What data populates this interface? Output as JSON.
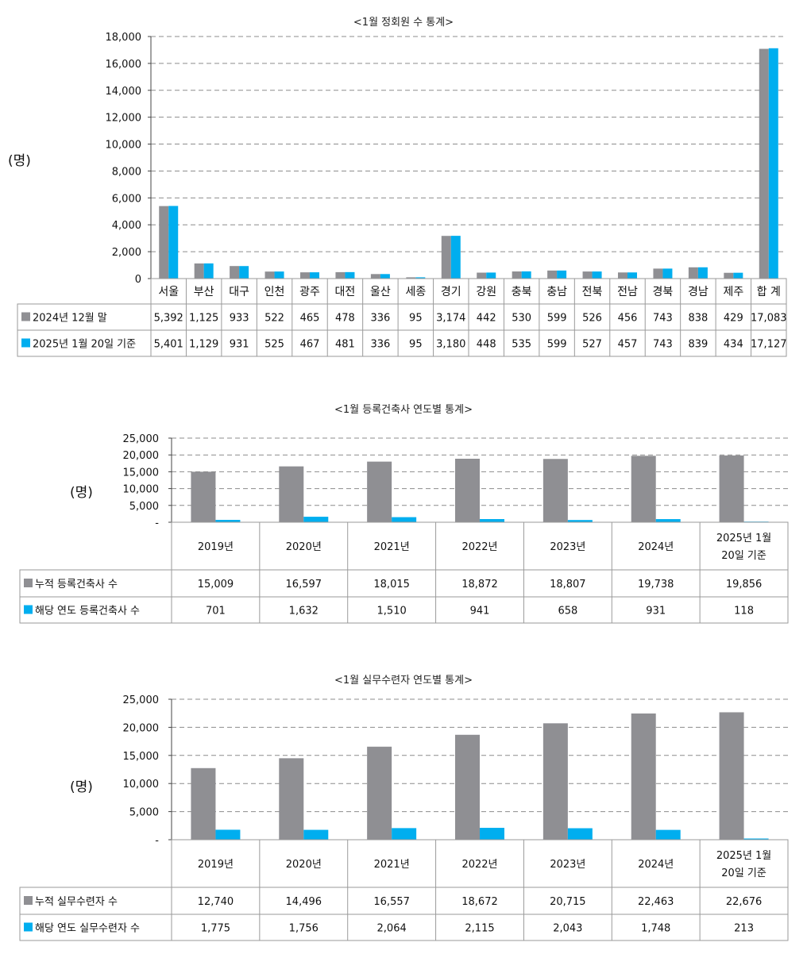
{
  "colors": {
    "gray": "#8f8f93",
    "blue": "#00aeef"
  },
  "chart_data": [
    {
      "type": "bar",
      "title": "<1월 정회원 수 통계>",
      "ylabel": "(명)",
      "ylim": [
        0,
        18000
      ],
      "yticks": [
        "0",
        "2,000",
        "4,000",
        "6,000",
        "8,000",
        "10,000",
        "12,000",
        "14,000",
        "16,000",
        "18,000"
      ],
      "categories": [
        "서울",
        "부산",
        "대구",
        "인천",
        "광주",
        "대전",
        "울산",
        "세종",
        "경기",
        "강원",
        "충북",
        "충남",
        "전북",
        "전남",
        "경북",
        "경남",
        "제주",
        "합 계"
      ],
      "series": [
        {
          "name": "2024년 12월 말",
          "color": "gray",
          "values": [
            5392,
            1125,
            933,
            522,
            465,
            478,
            336,
            95,
            3174,
            442,
            530,
            599,
            526,
            456,
            743,
            838,
            429,
            17083
          ],
          "labels": [
            "5,392",
            "1,125",
            "933",
            "522",
            "465",
            "478",
            "336",
            "95",
            "3,174",
            "442",
            "530",
            "599",
            "526",
            "456",
            "743",
            "838",
            "429",
            "17,083"
          ]
        },
        {
          "name": "2025년 1월 20일 기준",
          "color": "blue",
          "values": [
            5401,
            1129,
            931,
            525,
            467,
            481,
            336,
            95,
            3180,
            448,
            535,
            599,
            527,
            457,
            743,
            839,
            434,
            17127
          ],
          "labels": [
            "5,401",
            "1,129",
            "931",
            "525",
            "467",
            "481",
            "336",
            "95",
            "3,180",
            "448",
            "535",
            "599",
            "527",
            "457",
            "743",
            "839",
            "434",
            "17,127"
          ]
        }
      ]
    },
    {
      "type": "bar",
      "title": "<1월 등록건축사 연도별 통계>",
      "ylabel": "(명)",
      "ylim": [
        0,
        25000
      ],
      "yticks": [
        "-",
        "5,000",
        "10,000",
        "15,000",
        "20,000",
        "25,000"
      ],
      "categories": [
        [
          "2019년"
        ],
        [
          "2020년"
        ],
        [
          "2021년"
        ],
        [
          "2022년"
        ],
        [
          "2023년"
        ],
        [
          "2024년"
        ],
        [
          "2025년 1월",
          "20일 기준"
        ]
      ],
      "series": [
        {
          "name": "누적 등록건축사 수",
          "color": "gray",
          "values": [
            15009,
            16597,
            18015,
            18872,
            18807,
            19738,
            19856
          ],
          "labels": [
            "15,009",
            "16,597",
            "18,015",
            "18,872",
            "18,807",
            "19,738",
            "19,856"
          ]
        },
        {
          "name": "해당 연도 등록건축사 수",
          "color": "blue",
          "values": [
            701,
            1632,
            1510,
            941,
            658,
            931,
            118
          ],
          "labels": [
            "701",
            "1,632",
            "1,510",
            "941",
            "658",
            "931",
            "118"
          ]
        }
      ]
    },
    {
      "type": "bar",
      "title": "<1월 실무수련자 연도별 통계>",
      "ylabel": "(명)",
      "ylim": [
        0,
        25000
      ],
      "yticks": [
        "-",
        "5,000",
        "10,000",
        "15,000",
        "20,000",
        "25,000"
      ],
      "categories": [
        [
          "2019년"
        ],
        [
          "2020년"
        ],
        [
          "2021년"
        ],
        [
          "2022년"
        ],
        [
          "2023년"
        ],
        [
          "2024년"
        ],
        [
          "2025년 1월",
          "20일 기준"
        ]
      ],
      "series": [
        {
          "name": "누적 실무수련자 수",
          "color": "gray",
          "values": [
            12740,
            14496,
            16557,
            18672,
            20715,
            22463,
            22676
          ],
          "labels": [
            "12,740",
            "14,496",
            "16,557",
            "18,672",
            "20,715",
            "22,463",
            "22,676"
          ]
        },
        {
          "name": "해당 연도 실무수련자 수",
          "color": "blue",
          "values": [
            1775,
            1756,
            2064,
            2115,
            2043,
            1748,
            213
          ],
          "labels": [
            "1,775",
            "1,756",
            "2,064",
            "2,115",
            "2,043",
            "1,748",
            "213"
          ]
        }
      ]
    }
  ]
}
